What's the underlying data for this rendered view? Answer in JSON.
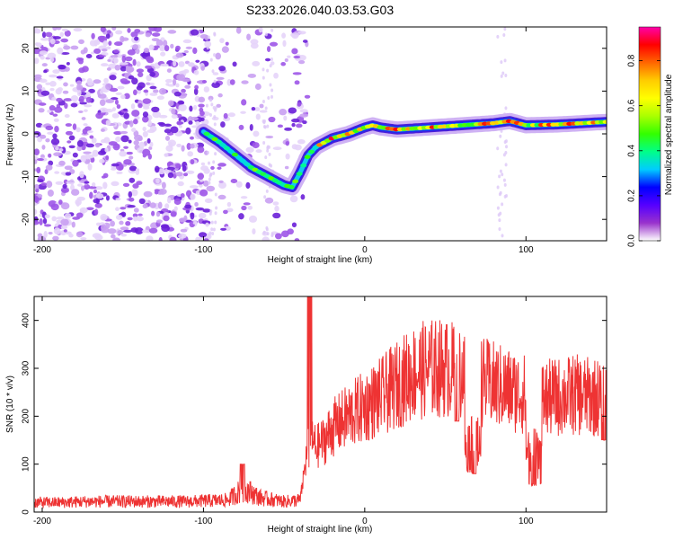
{
  "title": "S233.2026.040.03.53.G03",
  "chart_data": [
    {
      "type": "heatmap",
      "name": "spectrogram",
      "xlabel": "Height of straight line (km)",
      "ylabel": "Frequency (Hz)",
      "xlim": [
        -205,
        150
      ],
      "ylim": [
        -25,
        25
      ],
      "x_ticks": [
        -200,
        -100,
        0,
        100
      ],
      "y_ticks": [
        -20,
        -10,
        0,
        10,
        20
      ],
      "x_tick_labels": [
        "-200",
        "-100",
        "0",
        "100"
      ],
      "y_tick_labels": [
        "-20",
        "-10",
        "0",
        "10",
        "20"
      ],
      "signal_track": [
        {
          "x": -100,
          "y": 0.5
        },
        {
          "x": -90,
          "y": -2
        },
        {
          "x": -80,
          "y": -5
        },
        {
          "x": -70,
          "y": -8
        },
        {
          "x": -60,
          "y": -10
        },
        {
          "x": -50,
          "y": -12
        },
        {
          "x": -45,
          "y": -12.5
        },
        {
          "x": -40,
          "y": -9
        },
        {
          "x": -35,
          "y": -5
        },
        {
          "x": -30,
          "y": -3
        },
        {
          "x": -20,
          "y": -1
        },
        {
          "x": -10,
          "y": 0
        },
        {
          "x": 0,
          "y": 1.5
        },
        {
          "x": 5,
          "y": 2
        },
        {
          "x": 10,
          "y": 1.5
        },
        {
          "x": 20,
          "y": 1
        },
        {
          "x": 40,
          "y": 1.5
        },
        {
          "x": 60,
          "y": 2
        },
        {
          "x": 80,
          "y": 2.5
        },
        {
          "x": 90,
          "y": 3
        },
        {
          "x": 100,
          "y": 2
        },
        {
          "x": 120,
          "y": 2.2
        },
        {
          "x": 150,
          "y": 2.8
        }
      ],
      "colorbar": {
        "label": "Normalized spectral amplitude",
        "range": [
          0,
          0.95
        ],
        "ticks": [
          0.0,
          0.2,
          0.4,
          0.6,
          0.8
        ],
        "tick_labels": [
          "0.0",
          "0.2",
          "0.4",
          "0.6",
          "0.8"
        ],
        "colors": [
          "#ffffff",
          "#9932cc",
          "#5500ff",
          "#0000ff",
          "#00ccff",
          "#00ff88",
          "#33ff00",
          "#aaff00",
          "#ffff00",
          "#ffcc00",
          "#ff6600",
          "#ff0000",
          "#ff00aa"
        ]
      }
    },
    {
      "type": "line",
      "name": "snr",
      "xlabel": "Height of straight line (km)",
      "ylabel": "SNR (10 * v/v)",
      "xlim": [
        -205,
        150
      ],
      "ylim": [
        0,
        450
      ],
      "x_ticks": [
        -200,
        -100,
        0,
        100
      ],
      "y_ticks": [
        0,
        100,
        200,
        300,
        400
      ],
      "x_tick_labels": [
        "-200",
        "-100",
        "0",
        "100"
      ],
      "y_tick_labels": [
        "0",
        "100",
        "200",
        "300",
        "400"
      ],
      "color": "#ee3333",
      "envelope": [
        {
          "x": -205,
          "y": 20
        },
        {
          "x": -190,
          "y": 20
        },
        {
          "x": -170,
          "y": 22
        },
        {
          "x": -150,
          "y": 22
        },
        {
          "x": -130,
          "y": 22
        },
        {
          "x": -110,
          "y": 22
        },
        {
          "x": -85,
          "y": 25
        },
        {
          "x": -75,
          "y": 50
        },
        {
          "x": -65,
          "y": 30
        },
        {
          "x": -50,
          "y": 22
        },
        {
          "x": -40,
          "y": 25
        },
        {
          "x": -36,
          "y": 120
        },
        {
          "x": -33,
          "y": 150
        },
        {
          "x": -30,
          "y": 135
        },
        {
          "x": -25,
          "y": 150
        },
        {
          "x": -20,
          "y": 175
        },
        {
          "x": -10,
          "y": 200
        },
        {
          "x": 0,
          "y": 220
        },
        {
          "x": 10,
          "y": 240
        },
        {
          "x": 20,
          "y": 265
        },
        {
          "x": 30,
          "y": 290
        },
        {
          "x": 40,
          "y": 300
        },
        {
          "x": 50,
          "y": 300
        },
        {
          "x": 60,
          "y": 290
        },
        {
          "x": 70,
          "y": 275
        },
        {
          "x": 80,
          "y": 265
        },
        {
          "x": 90,
          "y": 255
        },
        {
          "x": 100,
          "y": 245
        },
        {
          "x": 110,
          "y": 235
        },
        {
          "x": 120,
          "y": 240
        },
        {
          "x": 130,
          "y": 245
        },
        {
          "x": 140,
          "y": 240
        },
        {
          "x": 150,
          "y": 240
        }
      ],
      "dips": [
        {
          "x": -76,
          "y": 100
        },
        {
          "x": -34,
          "y": 450
        },
        {
          "x": 57,
          "y": 190
        },
        {
          "x": 68,
          "y": 80
        },
        {
          "x": 105,
          "y": 55
        },
        {
          "x": 148,
          "y": 150
        }
      ]
    }
  ]
}
